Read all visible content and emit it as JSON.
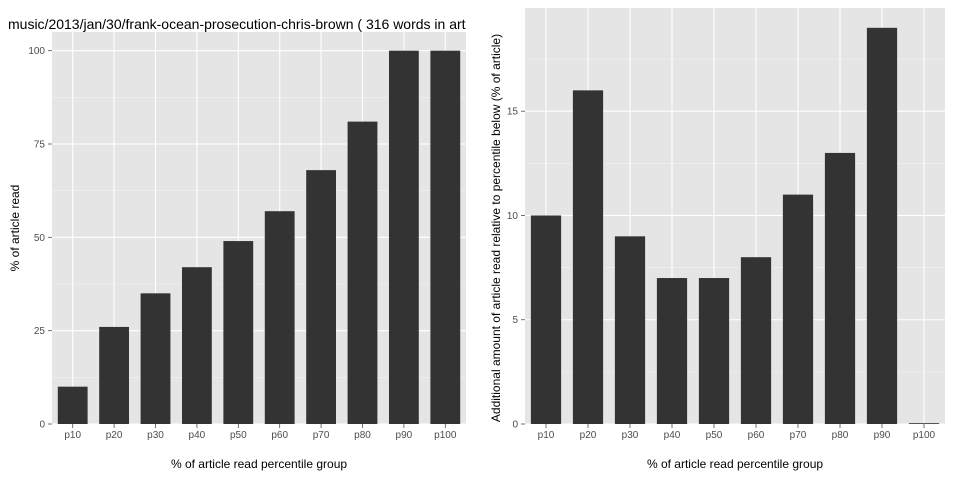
{
  "chart_data": [
    {
      "type": "bar",
      "title": "music/2013/jan/30/frank-ocean-prosecution-chris-brown ( 316 words in art",
      "xlabel": "% of article read percentile group",
      "ylabel": "% of article read",
      "categories": [
        "p10",
        "p20",
        "p30",
        "p40",
        "p50",
        "p60",
        "p70",
        "p80",
        "p90",
        "p100"
      ],
      "values": [
        10,
        26,
        35,
        42,
        49,
        57,
        68,
        81,
        100,
        100
      ],
      "ylim": [
        0,
        105
      ],
      "yticks": [
        0,
        25,
        50,
        75,
        100
      ],
      "grid": true,
      "bar_color": "#333333",
      "panel_color": "#e5e5e5"
    },
    {
      "type": "bar",
      "title": "",
      "xlabel": "% of article read percentile group",
      "ylabel": "Additional amount of article read relative to percentile below (% of article)",
      "categories": [
        "p10",
        "p20",
        "p30",
        "p40",
        "p50",
        "p60",
        "p70",
        "p80",
        "p90",
        "p100"
      ],
      "values": [
        10,
        16,
        9,
        7,
        7,
        8,
        11,
        13,
        19,
        0
      ],
      "ylim": [
        0,
        19.95
      ],
      "yticks": [
        0,
        5,
        10,
        15
      ],
      "grid": true,
      "bar_color": "#333333",
      "panel_color": "#e5e5e5"
    }
  ]
}
